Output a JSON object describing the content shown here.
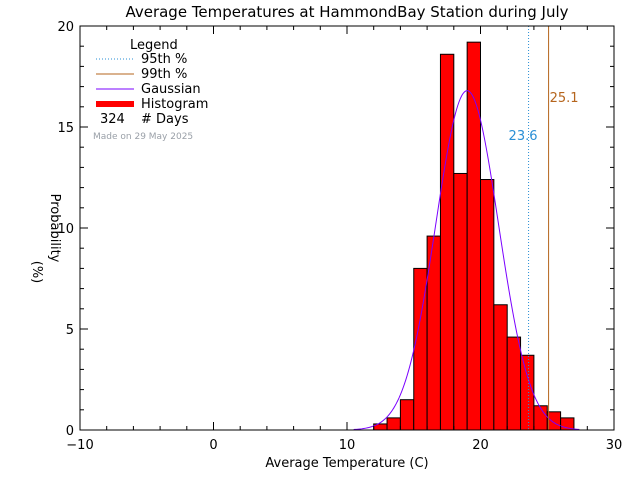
{
  "chart_data": {
    "type": "bar",
    "title": "Average Temperatures at HammondBay Station during July",
    "xlabel": "Average Temperature (C)",
    "ylabel_line1": "Probability",
    "ylabel_line2": "(%)",
    "xlim": [
      -10,
      30
    ],
    "ylim": [
      0,
      20
    ],
    "x_ticks": [
      -10,
      0,
      10,
      20,
      30
    ],
    "y_ticks": [
      0,
      5,
      10,
      15,
      20
    ],
    "bin_width": 1,
    "bins": [
      {
        "x0": 12,
        "value": 0.3
      },
      {
        "x0": 13,
        "value": 0.6
      },
      {
        "x0": 14,
        "value": 1.5
      },
      {
        "x0": 15,
        "value": 8.0
      },
      {
        "x0": 16,
        "value": 9.6
      },
      {
        "x0": 17,
        "value": 18.6
      },
      {
        "x0": 18,
        "value": 12.7
      },
      {
        "x0": 19,
        "value": 19.2
      },
      {
        "x0": 20,
        "value": 12.4
      },
      {
        "x0": 21,
        "value": 6.2
      },
      {
        "x0": 22,
        "value": 4.6
      },
      {
        "x0": 23,
        "value": 3.7
      },
      {
        "x0": 24,
        "value": 1.2
      },
      {
        "x0": 25,
        "value": 0.9
      },
      {
        "x0": 26,
        "value": 0.6
      }
    ],
    "gaussian": {
      "mean": 19.0,
      "sigma": 2.35,
      "peak": 16.8,
      "color": "#7a00ff"
    },
    "percentiles": [
      {
        "label": "95th %",
        "value": 23.6,
        "value_text": "23.6",
        "color": "#2a8fd6",
        "style": "dotted"
      },
      {
        "label": "99th %",
        "value": 25.1,
        "value_text": "25.1",
        "color": "#b5651d",
        "style": "solid"
      }
    ],
    "histogram_color": "#ff0000",
    "legend": {
      "title": "Legend",
      "items": [
        {
          "label": "95th %",
          "kind": "dotted",
          "color": "#2a8fd6"
        },
        {
          "label": "99th %",
          "kind": "solid",
          "color": "#b5651d"
        },
        {
          "label": "Gaussian",
          "kind": "solid",
          "color": "#7a00ff"
        },
        {
          "label": "Histogram",
          "kind": "thick",
          "color": "#ff0000"
        }
      ],
      "days_count": "324",
      "days_label": "# Days",
      "placement": "top-left"
    },
    "watermark": "Made on 29 May 2025",
    "grid": false
  }
}
